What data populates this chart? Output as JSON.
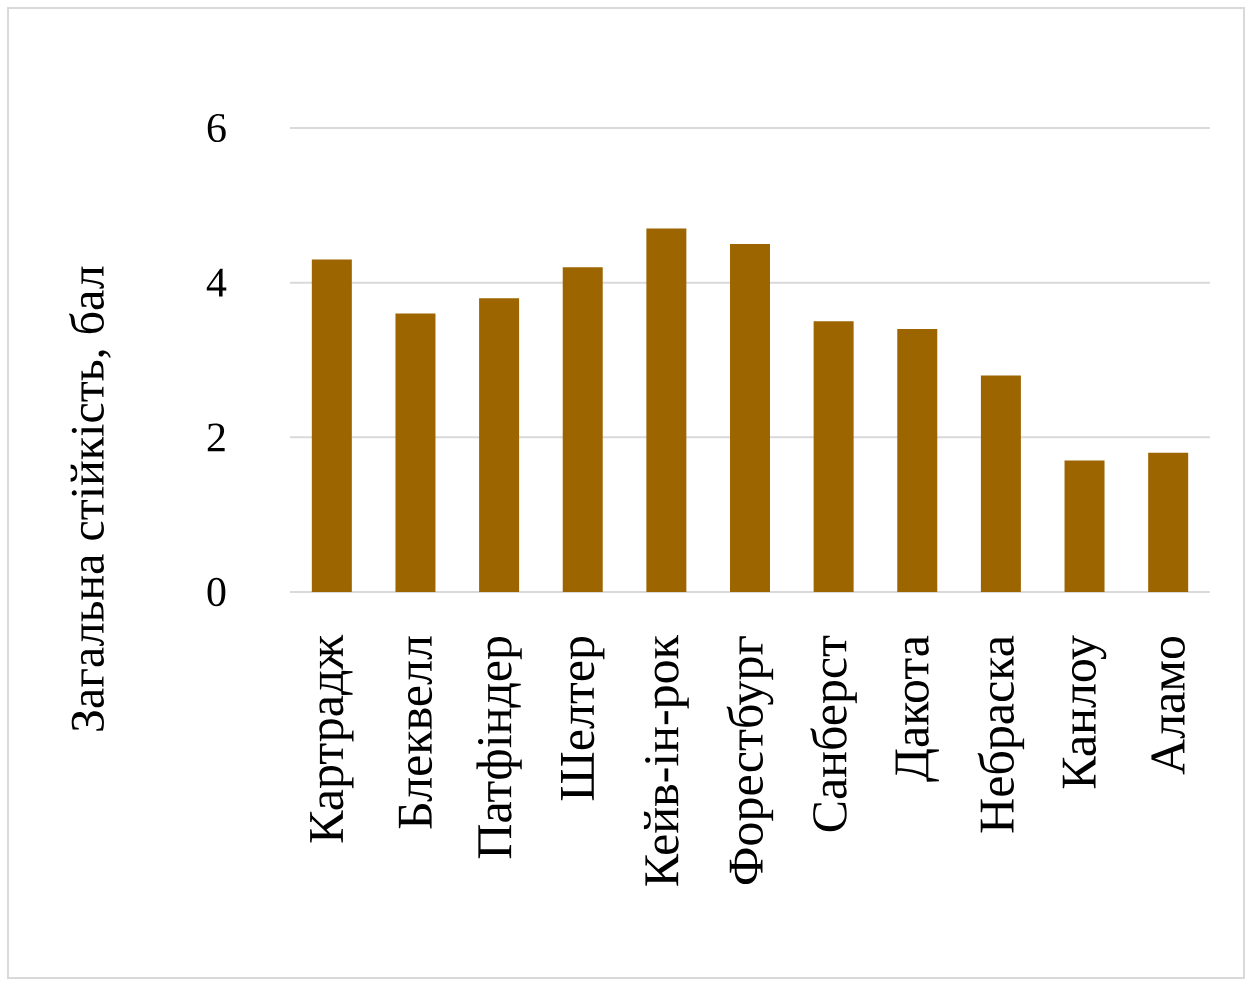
{
  "chart_data": {
    "type": "bar",
    "ylabel": "Загальна стійкість, бал",
    "categories": [
      "Картрадж",
      "Блеквелл",
      "Патфіндер",
      "Шелтер",
      "Кейв-ін-рок",
      "Форестбург",
      "Санберст",
      "Дакота",
      "Небраска",
      "Канлоу",
      "Аламо"
    ],
    "values": [
      4.3,
      3.6,
      3.8,
      4.2,
      4.7,
      4.5,
      3.5,
      3.4,
      2.8,
      1.7,
      1.8
    ],
    "color": "#9c6500",
    "ylim": [
      0,
      6
    ],
    "yticks": [
      0,
      2,
      4,
      6
    ],
    "grid": "y"
  }
}
